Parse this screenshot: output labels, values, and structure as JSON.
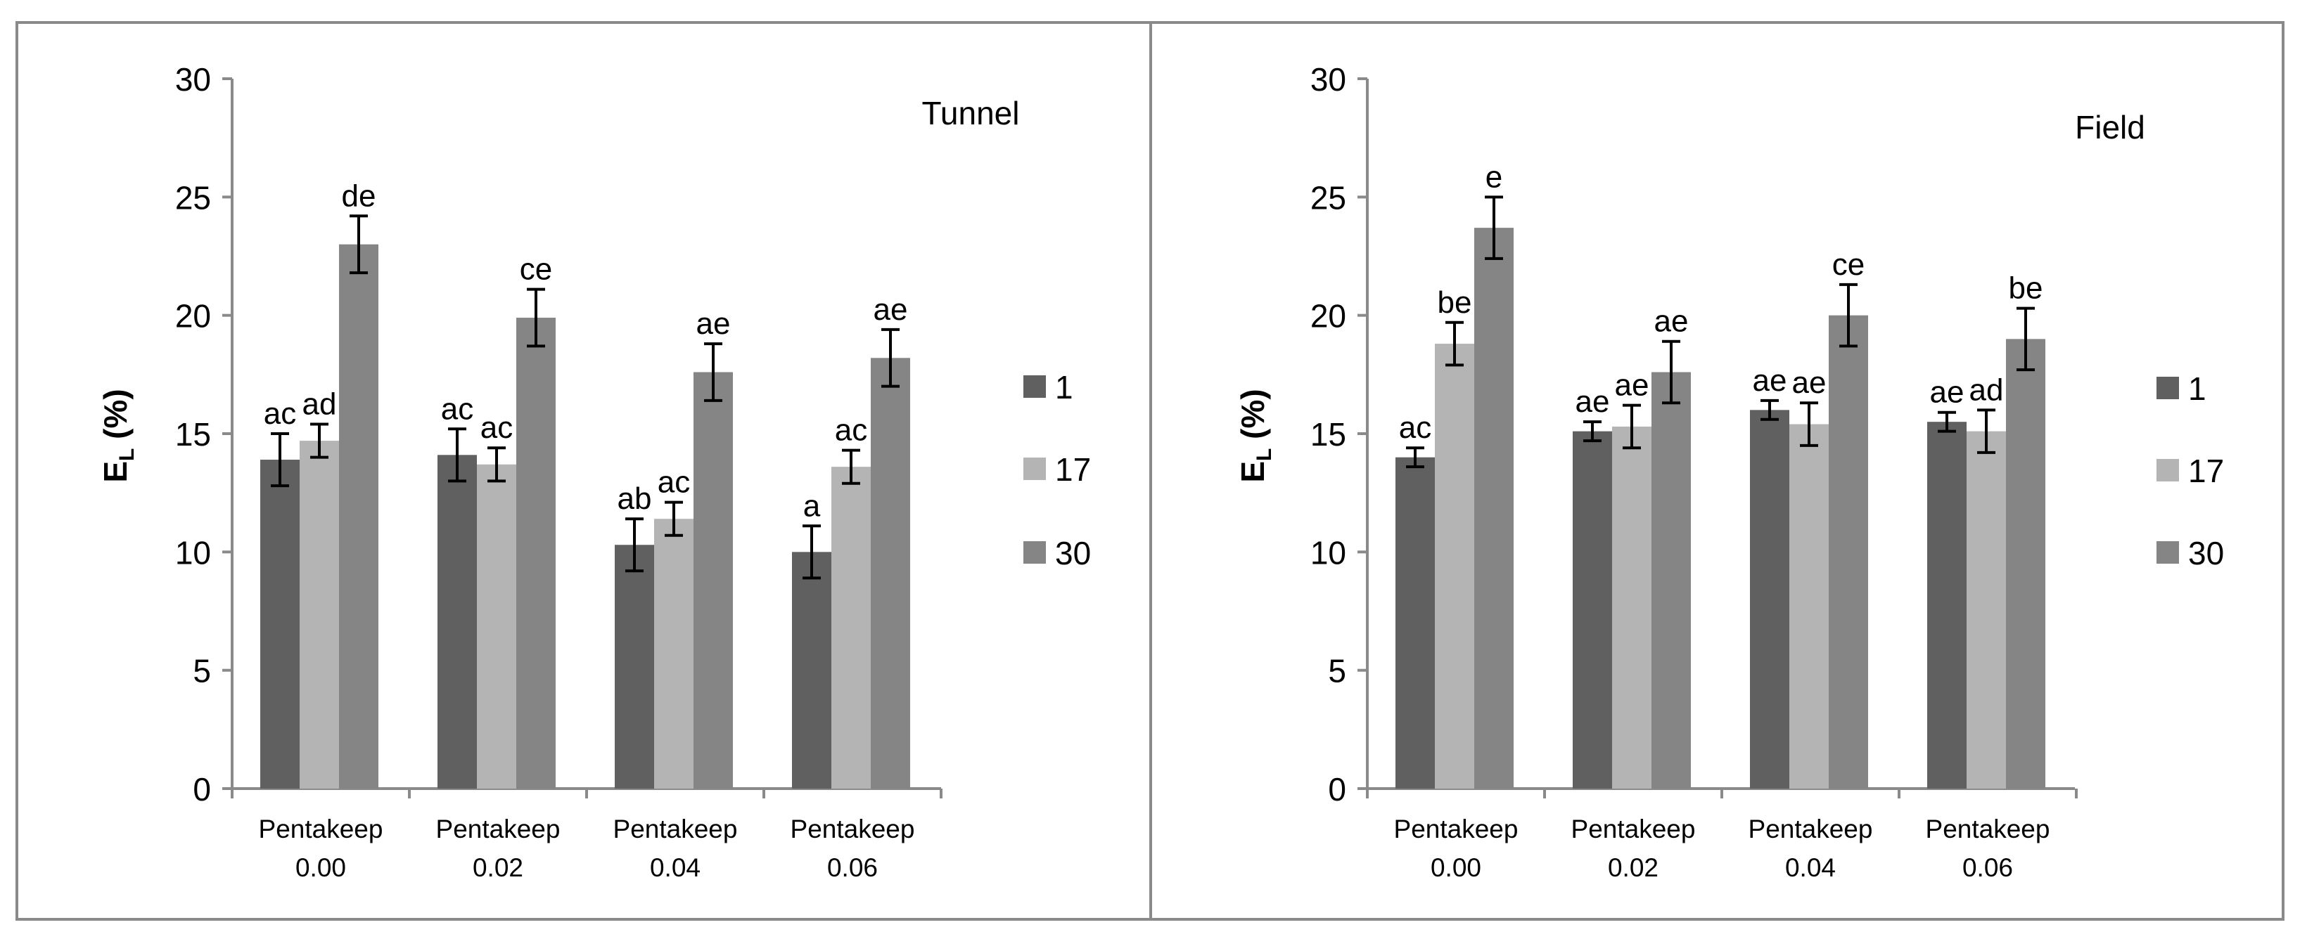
{
  "chart_data": [
    {
      "type": "bar",
      "panel_label": "Tunnel",
      "ylabel": "E",
      "ylabel_sub": "L",
      "ylabel_suffix": " (%)",
      "ylim": [
        0,
        30
      ],
      "yticks": [
        0,
        5,
        10,
        15,
        20,
        25,
        30
      ],
      "categories": [
        {
          "line1": "Pentakeep",
          "line2": "0.00"
        },
        {
          "line1": "Pentakeep",
          "line2": "0.02"
        },
        {
          "line1": "Pentakeep",
          "line2": "0.04"
        },
        {
          "line1": "Pentakeep",
          "line2": "0.06"
        }
      ],
      "series": [
        {
          "name": "1",
          "color": "#606060",
          "values": [
            13.9,
            14.1,
            10.3,
            10.0
          ],
          "errors": [
            1.1,
            1.1,
            1.1,
            1.1
          ],
          "letters": [
            "ac",
            "ac",
            "ab",
            "a"
          ]
        },
        {
          "name": "17",
          "color": "#b4b4b4",
          "values": [
            14.7,
            13.7,
            11.4,
            13.6
          ],
          "errors": [
            0.7,
            0.7,
            0.7,
            0.7
          ],
          "letters": [
            "ad",
            "ac",
            "ac",
            "ac"
          ]
        },
        {
          "name": "30",
          "color": "#858585",
          "values": [
            23.0,
            19.9,
            17.6,
            18.2
          ],
          "errors": [
            1.2,
            1.2,
            1.2,
            1.2
          ],
          "letters": [
            "de",
            "ce",
            "ae",
            "ae"
          ]
        }
      ],
      "legend_position": "right"
    },
    {
      "type": "bar",
      "panel_label": "Field",
      "ylabel": "E",
      "ylabel_sub": "L",
      "ylabel_suffix": " (%)",
      "ylim": [
        0,
        30
      ],
      "yticks": [
        0,
        5,
        10,
        15,
        20,
        25,
        30
      ],
      "categories": [
        {
          "line1": "Pentakeep",
          "line2": "0.00"
        },
        {
          "line1": "Pentakeep",
          "line2": "0.02"
        },
        {
          "line1": "Pentakeep",
          "line2": "0.04"
        },
        {
          "line1": "Pentakeep",
          "line2": "0.06"
        }
      ],
      "series": [
        {
          "name": "1",
          "color": "#606060",
          "values": [
            14.0,
            15.1,
            16.0,
            15.5
          ],
          "errors": [
            0.4,
            0.4,
            0.4,
            0.4
          ],
          "letters": [
            "ac",
            "ae",
            "ae",
            "ae"
          ]
        },
        {
          "name": "17",
          "color": "#b4b4b4",
          "values": [
            18.8,
            15.3,
            15.4,
            15.1
          ],
          "errors": [
            0.9,
            0.9,
            0.9,
            0.9
          ],
          "letters": [
            "be",
            "ae",
            "ae",
            "ad"
          ]
        },
        {
          "name": "30",
          "color": "#858585",
          "values": [
            23.7,
            17.6,
            20.0,
            19.0
          ],
          "errors": [
            1.3,
            1.3,
            1.3,
            1.3
          ],
          "letters": [
            "e",
            "ae",
            "ce",
            "be"
          ]
        }
      ],
      "legend_position": "right"
    }
  ]
}
